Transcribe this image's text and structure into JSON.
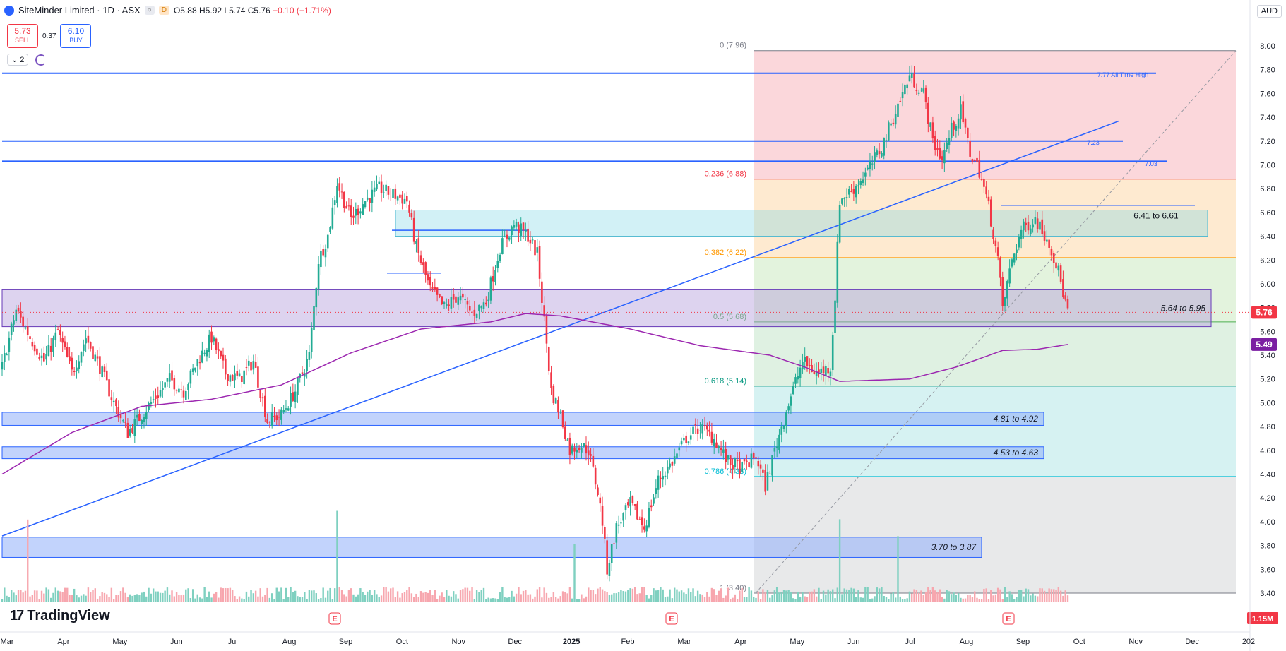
{
  "header": {
    "title": "SiteMinder Limited · 1D · ASX",
    "badge_d": "D",
    "open": "O5.88",
    "high": "H5.92",
    "low": "L5.74",
    "close": "C5.76",
    "change": "−0.10 (−1.71%)"
  },
  "trade": {
    "sell_price": "5.73",
    "sell_label": "SELL",
    "spread": "0.37",
    "buy_price": "6.10",
    "buy_label": "BUY"
  },
  "indicators": {
    "count": "2"
  },
  "currency": "AUD",
  "brand": "TradingView",
  "colors": {
    "up": "#22ab94",
    "down": "#f23645",
    "blue_line": "#2962ff",
    "ma": "#9c27b0",
    "price_badge": "#f23645",
    "ma_badge": "#7b1fa2"
  },
  "chart_data": {
    "type": "candlestick",
    "symbol": "SiteMinder Limited",
    "interval": "1D",
    "exchange": "ASX",
    "x_labels": [
      "Mar",
      "Apr",
      "May",
      "Jun",
      "Jul",
      "Aug",
      "Sep",
      "Oct",
      "Nov",
      "Dec",
      "2025",
      "Feb",
      "Mar",
      "Apr",
      "May",
      "Jun",
      "Jul",
      "Aug",
      "Sep",
      "Oct",
      "Nov",
      "Dec",
      "202"
    ],
    "y_ticks": [
      "8.00",
      "7.80",
      "7.60",
      "7.40",
      "7.20",
      "7.00",
      "6.80",
      "6.60",
      "6.40",
      "6.20",
      "6.00",
      "5.80",
      "5.60",
      "5.40",
      "5.20",
      "5.00",
      "4.80",
      "4.60",
      "4.40",
      "4.20",
      "4.00",
      "3.80",
      "3.60",
      "3.40"
    ],
    "ylim": [
      3.3,
      8.05
    ],
    "last_price": "5.76",
    "ma_value": "5.49",
    "volume_label": "1.15M",
    "fib_levels": [
      {
        "label": "0 (7.96)",
        "value": 7.96
      },
      {
        "label": "0.236 (6.88)",
        "value": 6.88
      },
      {
        "label": "0.382 (6.22)",
        "value": 6.22
      },
      {
        "label": "0.5 (5.68)",
        "value": 5.68
      },
      {
        "label": "0.618 (5.14)",
        "value": 5.14
      },
      {
        "label": "0.786 (4.38)",
        "value": 4.38
      },
      {
        "label": "1 (3.40)",
        "value": 3.4
      }
    ],
    "zones": [
      {
        "label": "5.64 to 5.95",
        "low": 5.64,
        "high": 5.95
      },
      {
        "label": "4.81 to 4.92",
        "low": 4.81,
        "high": 4.92
      },
      {
        "label": "4.53 to 4.63",
        "low": 4.53,
        "high": 4.63
      },
      {
        "label": "3.70 to 3.87",
        "low": 3.7,
        "high": 3.87
      }
    ],
    "labels": [
      "7.77 All Time High",
      "7.23",
      "7.03",
      "6.41 to 6.61"
    ],
    "horizontal_lines": [
      7.77,
      7.2,
      7.03
    ],
    "earnings_markers": [
      "E",
      "E",
      "E"
    ],
    "close_path": [
      {
        "x": 0,
        "y": 5.3
      },
      {
        "x": 6,
        "y": 5.78
      },
      {
        "x": 12,
        "y": 5.55
      },
      {
        "x": 18,
        "y": 5.35
      },
      {
        "x": 24,
        "y": 5.6
      },
      {
        "x": 30,
        "y": 5.25
      },
      {
        "x": 36,
        "y": 5.55
      },
      {
        "x": 42,
        "y": 5.3
      },
      {
        "x": 48,
        "y": 5.0
      },
      {
        "x": 54,
        "y": 4.75
      },
      {
        "x": 60,
        "y": 4.9
      },
      {
        "x": 66,
        "y": 5.05
      },
      {
        "x": 72,
        "y": 5.2
      },
      {
        "x": 78,
        "y": 5.1
      },
      {
        "x": 84,
        "y": 5.35
      },
      {
        "x": 90,
        "y": 5.55
      },
      {
        "x": 96,
        "y": 5.25
      },
      {
        "x": 102,
        "y": 5.2
      },
      {
        "x": 108,
        "y": 5.35
      },
      {
        "x": 114,
        "y": 4.85
      },
      {
        "x": 120,
        "y": 4.9
      },
      {
        "x": 126,
        "y": 5.1
      },
      {
        "x": 132,
        "y": 5.4
      },
      {
        "x": 136,
        "y": 6.2
      },
      {
        "x": 140,
        "y": 6.4
      },
      {
        "x": 144,
        "y": 6.85
      },
      {
        "x": 150,
        "y": 6.55
      },
      {
        "x": 156,
        "y": 6.7
      },
      {
        "x": 162,
        "y": 6.8
      },
      {
        "x": 168,
        "y": 6.75
      },
      {
        "x": 174,
        "y": 6.7
      },
      {
        "x": 178,
        "y": 6.3
      },
      {
        "x": 184,
        "y": 5.95
      },
      {
        "x": 190,
        "y": 5.8
      },
      {
        "x": 196,
        "y": 5.9
      },
      {
        "x": 202,
        "y": 5.75
      },
      {
        "x": 208,
        "y": 5.85
      },
      {
        "x": 214,
        "y": 6.3
      },
      {
        "x": 220,
        "y": 6.5
      },
      {
        "x": 226,
        "y": 6.4
      },
      {
        "x": 230,
        "y": 6.25
      },
      {
        "x": 234,
        "y": 5.5
      },
      {
        "x": 236,
        "y": 5.1
      },
      {
        "x": 240,
        "y": 4.9
      },
      {
        "x": 244,
        "y": 4.6
      },
      {
        "x": 248,
        "y": 4.65
      },
      {
        "x": 252,
        "y": 4.6
      },
      {
        "x": 256,
        "y": 4.25
      },
      {
        "x": 258,
        "y": 4.0
      },
      {
        "x": 260,
        "y": 3.6
      },
      {
        "x": 264,
        "y": 3.95
      },
      {
        "x": 270,
        "y": 4.15
      },
      {
        "x": 276,
        "y": 3.95
      },
      {
        "x": 282,
        "y": 4.35
      },
      {
        "x": 288,
        "y": 4.5
      },
      {
        "x": 294,
        "y": 4.7
      },
      {
        "x": 300,
        "y": 4.8
      },
      {
        "x": 306,
        "y": 4.7
      },
      {
        "x": 312,
        "y": 4.5
      },
      {
        "x": 318,
        "y": 4.45
      },
      {
        "x": 324,
        "y": 4.55
      },
      {
        "x": 328,
        "y": 4.3
      },
      {
        "x": 332,
        "y": 4.6
      },
      {
        "x": 338,
        "y": 5.0
      },
      {
        "x": 344,
        "y": 5.35
      },
      {
        "x": 350,
        "y": 5.25
      },
      {
        "x": 356,
        "y": 5.3
      },
      {
        "x": 358,
        "y": 5.9
      },
      {
        "x": 360,
        "y": 6.7
      },
      {
        "x": 366,
        "y": 6.8
      },
      {
        "x": 372,
        "y": 6.95
      },
      {
        "x": 378,
        "y": 7.15
      },
      {
        "x": 384,
        "y": 7.45
      },
      {
        "x": 390,
        "y": 7.75
      },
      {
        "x": 396,
        "y": 7.6
      },
      {
        "x": 400,
        "y": 7.2
      },
      {
        "x": 404,
        "y": 7.05
      },
      {
        "x": 408,
        "y": 7.3
      },
      {
        "x": 412,
        "y": 7.45
      },
      {
        "x": 416,
        "y": 7.1
      },
      {
        "x": 420,
        "y": 6.95
      },
      {
        "x": 424,
        "y": 6.65
      },
      {
        "x": 428,
        "y": 6.2
      },
      {
        "x": 430,
        "y": 5.8
      },
      {
        "x": 434,
        "y": 6.2
      },
      {
        "x": 438,
        "y": 6.45
      },
      {
        "x": 444,
        "y": 6.55
      },
      {
        "x": 450,
        "y": 6.35
      },
      {
        "x": 454,
        "y": 6.1
      },
      {
        "x": 458,
        "y": 5.76
      }
    ],
    "ma_path": [
      {
        "x": 0,
        "y": 4.4
      },
      {
        "x": 30,
        "y": 4.75
      },
      {
        "x": 60,
        "y": 4.97
      },
      {
        "x": 90,
        "y": 5.03
      },
      {
        "x": 120,
        "y": 5.15
      },
      {
        "x": 150,
        "y": 5.42
      },
      {
        "x": 180,
        "y": 5.62
      },
      {
        "x": 210,
        "y": 5.68
      },
      {
        "x": 225,
        "y": 5.75
      },
      {
        "x": 240,
        "y": 5.73
      },
      {
        "x": 270,
        "y": 5.62
      },
      {
        "x": 300,
        "y": 5.48
      },
      {
        "x": 330,
        "y": 5.4
      },
      {
        "x": 345,
        "y": 5.3
      },
      {
        "x": 360,
        "y": 5.18
      },
      {
        "x": 390,
        "y": 5.2
      },
      {
        "x": 410,
        "y": 5.3
      },
      {
        "x": 430,
        "y": 5.44
      },
      {
        "x": 445,
        "y": 5.45
      },
      {
        "x": 458,
        "y": 5.49
      }
    ]
  }
}
